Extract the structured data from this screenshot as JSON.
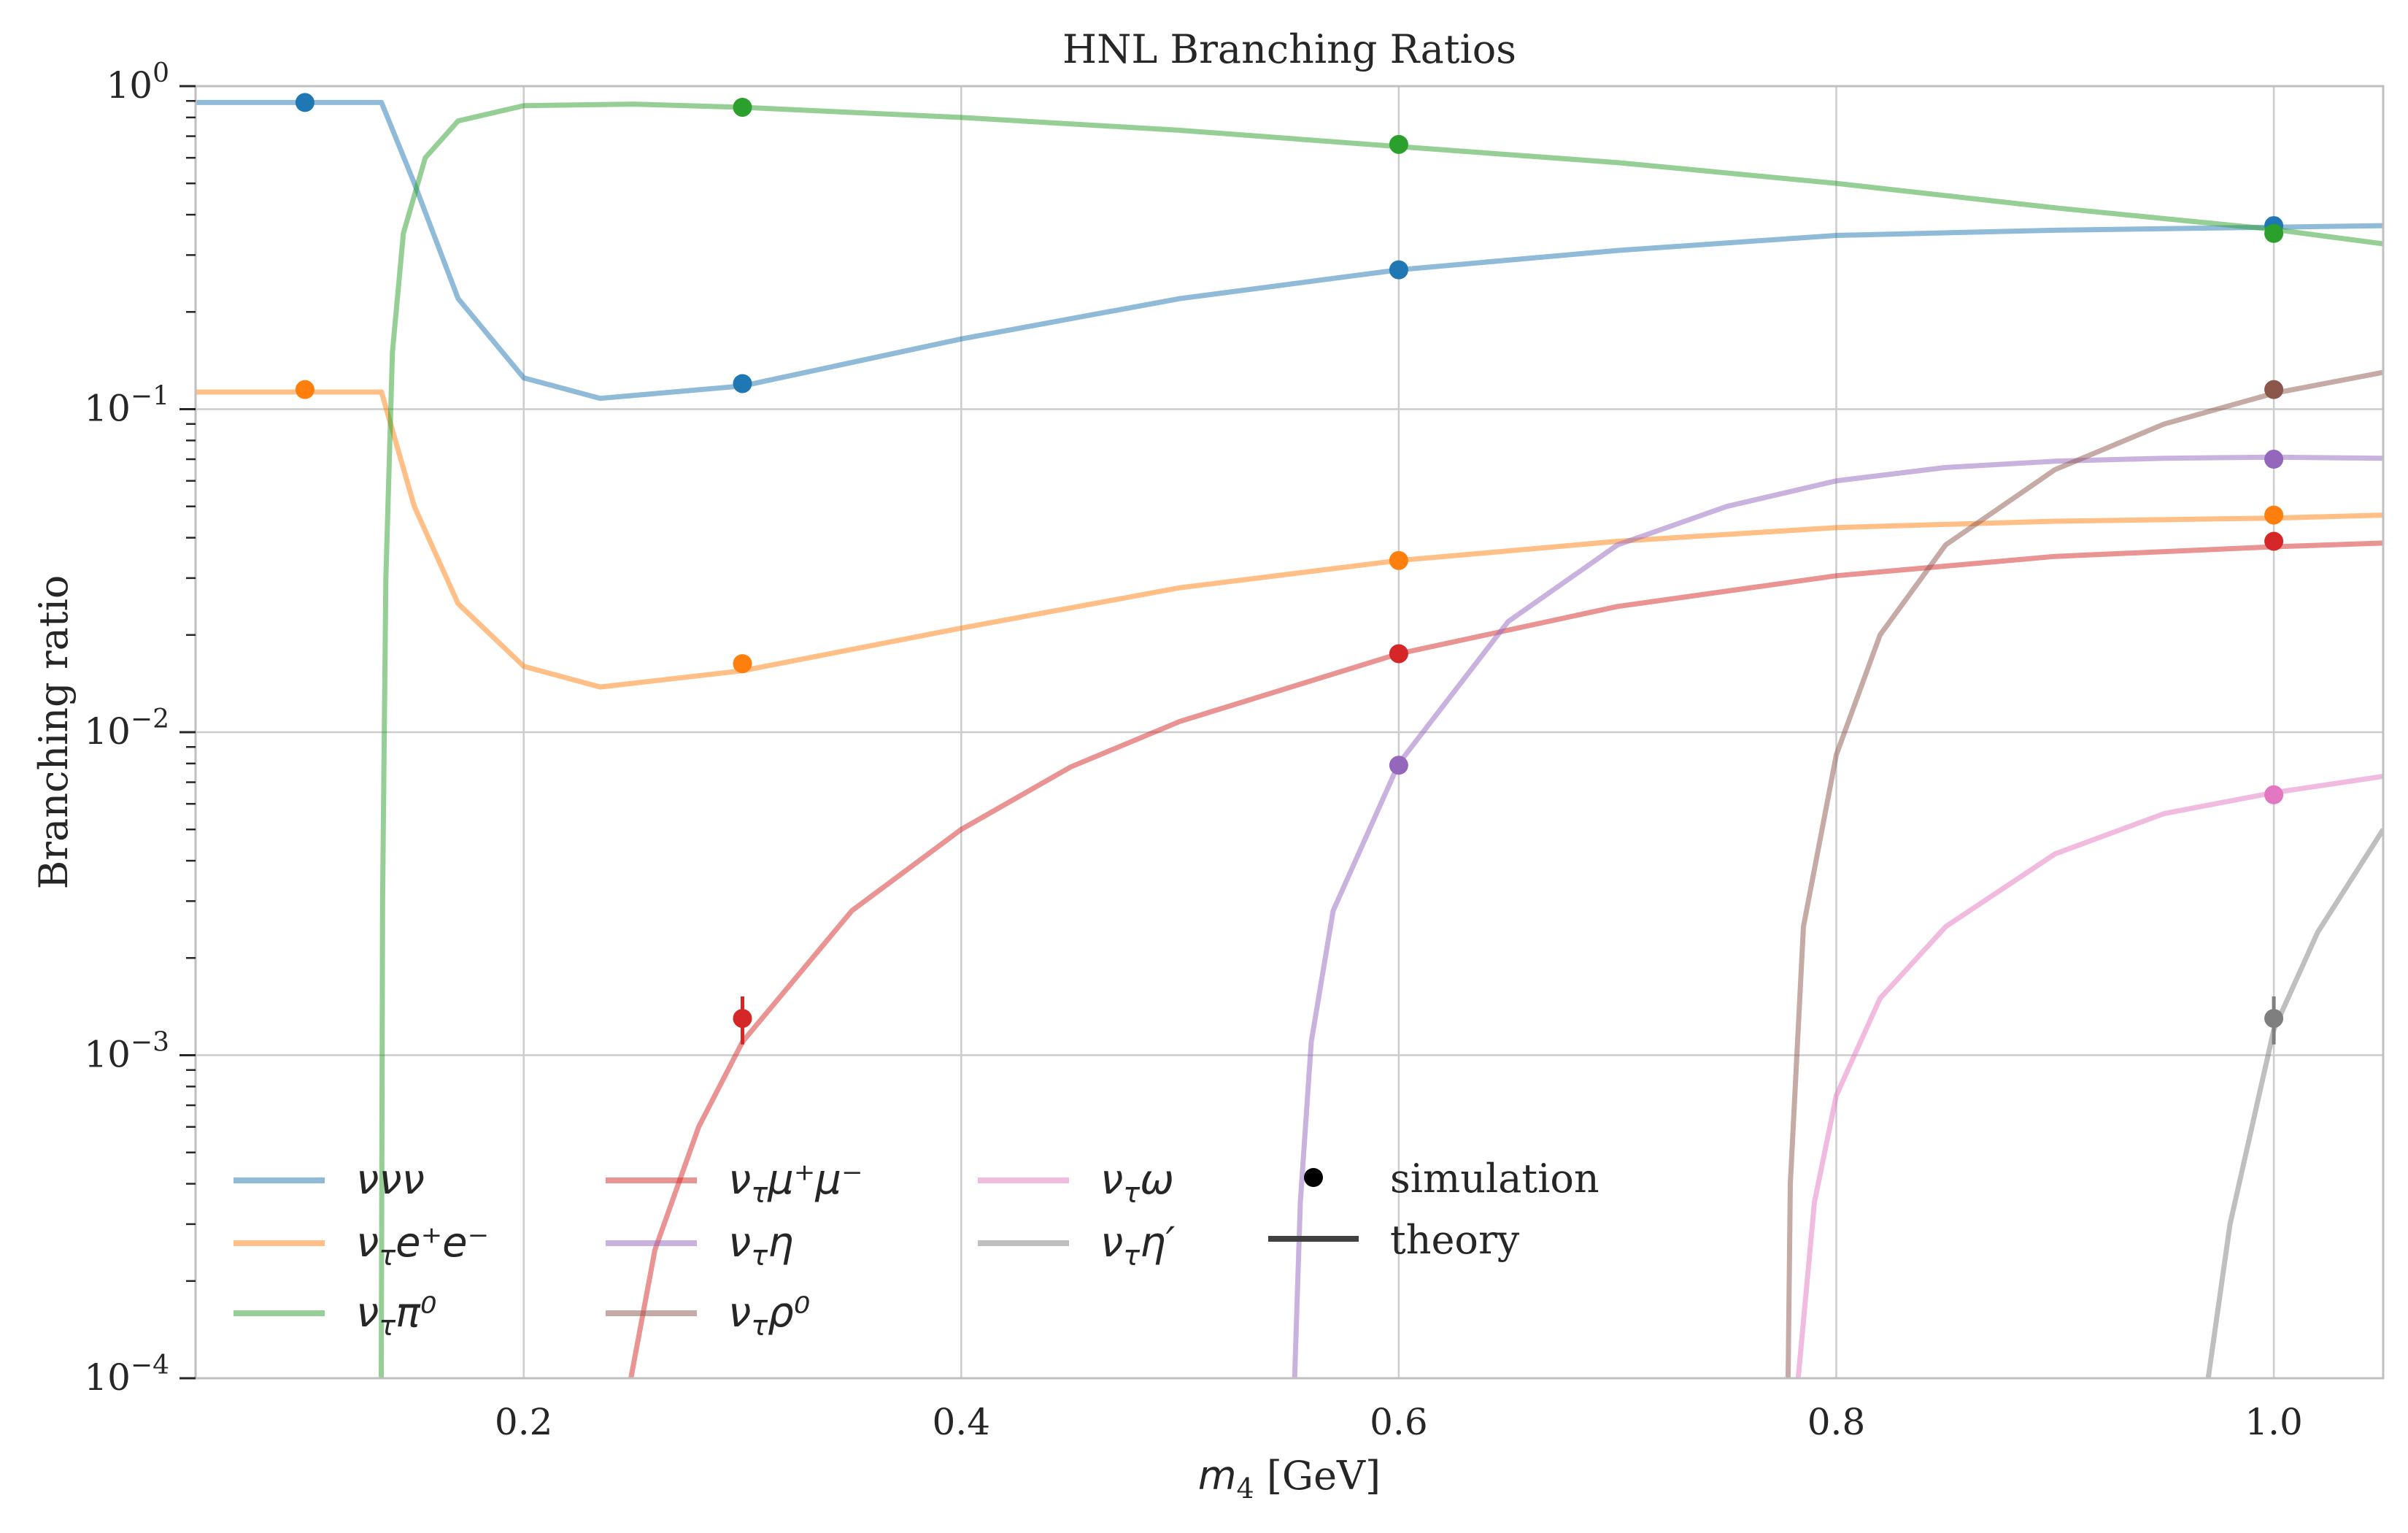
{
  "chart_data": {
    "type": "line",
    "title": "HNL Branching Ratios",
    "xlabel_main": "m",
    "xlabel_sub": "4",
    "xlabel_unit": " [GeV]",
    "ylabel": "Branching ratio",
    "xlim": [
      0.05,
      1.05
    ],
    "ylim": [
      0.0001,
      1
    ],
    "yscale": "log",
    "grid": true,
    "legend_position": "lower-left",
    "x_ticks": [
      {
        "v": 0.2,
        "label": "0.2"
      },
      {
        "v": 0.4,
        "label": "0.4"
      },
      {
        "v": 0.6,
        "label": "0.6"
      },
      {
        "v": 0.8,
        "label": "0.8"
      },
      {
        "v": 1.0,
        "label": "1.0"
      }
    ],
    "y_ticks": [
      {
        "v": 1,
        "base": "10",
        "exp": "0"
      },
      {
        "v": 0.1,
        "base": "10",
        "exp": "−1"
      },
      {
        "v": 0.01,
        "base": "10",
        "exp": "−2"
      },
      {
        "v": 0.001,
        "base": "10",
        "exp": "−3"
      },
      {
        "v": 0.0001,
        "base": "10",
        "exp": "−4"
      }
    ],
    "series": [
      {
        "name": "ννν",
        "color": "#1f77b4",
        "theory": [
          [
            0.05,
            0.89
          ],
          [
            0.135,
            0.89
          ],
          [
            0.15,
            0.5
          ],
          [
            0.17,
            0.22
          ],
          [
            0.2,
            0.125
          ],
          [
            0.235,
            0.108
          ],
          [
            0.3,
            0.118
          ],
          [
            0.4,
            0.165
          ],
          [
            0.5,
            0.22
          ],
          [
            0.6,
            0.27
          ],
          [
            0.7,
            0.31
          ],
          [
            0.8,
            0.345
          ],
          [
            0.9,
            0.358
          ],
          [
            1.0,
            0.366
          ],
          [
            1.05,
            0.37
          ]
        ],
        "sim": [
          [
            0.1,
            0.89
          ],
          [
            0.3,
            0.12
          ],
          [
            0.6,
            0.27
          ],
          [
            1.0,
            0.37
          ]
        ]
      },
      {
        "name": "ντe⁺e⁻",
        "color": "#ff7f0e",
        "theory": [
          [
            0.05,
            0.113
          ],
          [
            0.135,
            0.113
          ],
          [
            0.15,
            0.05
          ],
          [
            0.17,
            0.025
          ],
          [
            0.2,
            0.016
          ],
          [
            0.235,
            0.0138
          ],
          [
            0.3,
            0.0155
          ],
          [
            0.4,
            0.021
          ],
          [
            0.5,
            0.028
          ],
          [
            0.6,
            0.034
          ],
          [
            0.7,
            0.039
          ],
          [
            0.8,
            0.043
          ],
          [
            0.9,
            0.045
          ],
          [
            1.0,
            0.046
          ],
          [
            1.05,
            0.047
          ]
        ],
        "sim": [
          [
            0.1,
            0.115
          ],
          [
            0.3,
            0.0163
          ],
          [
            0.6,
            0.034
          ],
          [
            1.0,
            0.047
          ]
        ]
      },
      {
        "name": "ντπ⁰",
        "color": "#2ca02c",
        "theory": [
          [
            0.1349,
            0.0001
          ],
          [
            0.1355,
            0.003
          ],
          [
            0.137,
            0.03
          ],
          [
            0.14,
            0.15
          ],
          [
            0.145,
            0.35
          ],
          [
            0.155,
            0.6
          ],
          [
            0.17,
            0.78
          ],
          [
            0.2,
            0.87
          ],
          [
            0.25,
            0.88
          ],
          [
            0.3,
            0.86
          ],
          [
            0.4,
            0.8
          ],
          [
            0.5,
            0.73
          ],
          [
            0.6,
            0.65
          ],
          [
            0.7,
            0.58
          ],
          [
            0.8,
            0.5
          ],
          [
            0.9,
            0.42
          ],
          [
            1.0,
            0.36
          ],
          [
            1.05,
            0.325
          ]
        ],
        "sim": [
          [
            0.3,
            0.86
          ],
          [
            0.6,
            0.66
          ],
          [
            1.0,
            0.35
          ]
        ]
      },
      {
        "name": "ντμ⁺μ⁻",
        "color": "#d62728",
        "theory": [
          [
            0.249,
            0.0001
          ],
          [
            0.26,
            0.00025
          ],
          [
            0.28,
            0.0006
          ],
          [
            0.3,
            0.0011
          ],
          [
            0.35,
            0.0028
          ],
          [
            0.4,
            0.005
          ],
          [
            0.45,
            0.0078
          ],
          [
            0.5,
            0.0108
          ],
          [
            0.6,
            0.0175
          ],
          [
            0.7,
            0.0245
          ],
          [
            0.8,
            0.0305
          ],
          [
            0.9,
            0.035
          ],
          [
            1.0,
            0.0375
          ],
          [
            1.05,
            0.0385
          ]
        ],
        "sim": [
          [
            0.3,
            0.0013,
            0.00022
          ],
          [
            0.6,
            0.0175
          ],
          [
            1.0,
            0.039
          ]
        ]
      },
      {
        "name": "ντη",
        "color": "#9467bd",
        "theory": [
          [
            0.5524,
            0.0001
          ],
          [
            0.555,
            0.00035
          ],
          [
            0.56,
            0.0011
          ],
          [
            0.57,
            0.0028
          ],
          [
            0.6,
            0.008
          ],
          [
            0.65,
            0.022
          ],
          [
            0.7,
            0.038
          ],
          [
            0.75,
            0.05
          ],
          [
            0.8,
            0.06
          ],
          [
            0.85,
            0.066
          ],
          [
            0.9,
            0.069
          ],
          [
            0.95,
            0.0705
          ],
          [
            1.0,
            0.071
          ],
          [
            1.05,
            0.0705
          ]
        ],
        "sim": [
          [
            0.6,
            0.0079
          ],
          [
            1.0,
            0.07
          ]
        ]
      },
      {
        "name": "ντρ⁰",
        "color": "#8c564b",
        "theory": [
          [
            0.778,
            0.0001
          ],
          [
            0.779,
            0.0004
          ],
          [
            0.785,
            0.0025
          ],
          [
            0.8,
            0.0085
          ],
          [
            0.82,
            0.02
          ],
          [
            0.85,
            0.038
          ],
          [
            0.9,
            0.065
          ],
          [
            0.95,
            0.09
          ],
          [
            1.0,
            0.112
          ],
          [
            1.05,
            0.13
          ]
        ],
        "sim": [
          [
            1.0,
            0.115
          ]
        ]
      },
      {
        "name": "ντω",
        "color": "#e377c2",
        "theory": [
          [
            0.7826,
            0.0001
          ],
          [
            0.79,
            0.00035
          ],
          [
            0.8,
            0.00075
          ],
          [
            0.82,
            0.0015
          ],
          [
            0.85,
            0.0025
          ],
          [
            0.9,
            0.0042
          ],
          [
            0.95,
            0.0056
          ],
          [
            1.0,
            0.0065
          ],
          [
            1.05,
            0.0073
          ]
        ],
        "sim": [
          [
            1.0,
            0.0064
          ]
        ]
      },
      {
        "name": "ντη′",
        "color": "#7f7f7f",
        "theory": [
          [
            0.9578,
            0.0001
          ],
          [
            0.96,
            6e-05
          ],
          [
            0.97,
            0.0001
          ],
          [
            0.98,
            0.0003
          ],
          [
            1.0,
            0.0012
          ],
          [
            1.02,
            0.0024
          ],
          [
            1.05,
            0.005
          ]
        ],
        "sim": [
          [
            1.0,
            0.0013,
            0.00022
          ]
        ]
      }
    ],
    "legend": {
      "entries": [
        {
          "base": "ν",
          "sub": "",
          "rest": "νν",
          "color": "#1f77b4"
        },
        {
          "base": "ν",
          "sub": "τ",
          "rest": "e⁺e⁻",
          "color": "#ff7f0e"
        },
        {
          "base": "ν",
          "sub": "τ",
          "rest": "π⁰",
          "color": "#2ca02c"
        },
        {
          "base": "ν",
          "sub": "τ",
          "rest": "μ⁺μ⁻",
          "color": "#d62728"
        },
        {
          "base": "ν",
          "sub": "τ",
          "rest": "η",
          "color": "#9467bd"
        },
        {
          "base": "ν",
          "sub": "τ",
          "rest": "ρ⁰",
          "color": "#8c564b"
        },
        {
          "base": "ν",
          "sub": "τ",
          "rest": "ω",
          "color": "#e377c2"
        },
        {
          "base": "ν",
          "sub": "τ",
          "rest": "η′",
          "color": "#7f7f7f"
        }
      ],
      "simulation_label": "simulation",
      "theory_label": "theory"
    }
  }
}
